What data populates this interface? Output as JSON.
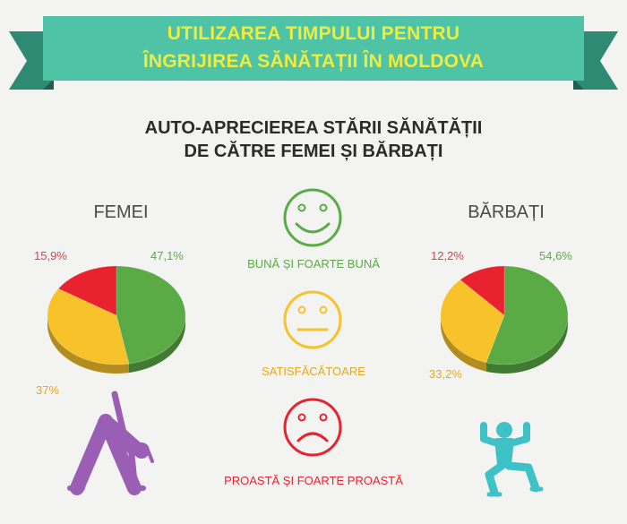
{
  "banner": {
    "line1": "UTILIZAREA TIMPULUI PENTRU",
    "line2": "ÎNGRIJIREA SĂNĂTAȚII ÎN MOLDOVA"
  },
  "subtitle": {
    "line1": "AUTO-APRECIEREA STĂRII SĂNĂTĂȚII",
    "line2": "DE CĂTRE FEMEI ȘI BĂRBAȚI"
  },
  "colors": {
    "banner": "#4fc3a6",
    "banner_dark": "#2f8a73",
    "good": "#5aab46",
    "satisfactory": "#f7c22a",
    "poor": "#e8232f",
    "women_figure": "#9a5fb5",
    "men_figure": "#3fc2c6"
  },
  "legend": {
    "good": "BUNĂ ȘI FOARTE BUNĂ",
    "satisfactory": "SATISFĂCĂTOARE",
    "poor": "PROASTĂ ȘI FOARTE PROASTĂ",
    "icons": [
      "smiley-happy-icon",
      "smiley-neutral-icon",
      "smiley-sad-icon"
    ]
  },
  "chart_data": [
    {
      "type": "pie",
      "title": "FEMEI",
      "labels": [
        "BUNĂ ȘI FOARTE BUNĂ",
        "SATISFĂCĂTOARE",
        "PROASTĂ ȘI FOARTE PROASTĂ"
      ],
      "values": [
        47.1,
        37.0,
        15.9
      ],
      "display": [
        "47,1%",
        "37%",
        "15,9%"
      ]
    },
    {
      "type": "pie",
      "title": "BĂRBAȚI",
      "labels": [
        "BUNĂ ȘI FOARTE BUNĂ",
        "SATISFĂCĂTOARE",
        "PROASTĂ ȘI FOARTE PROASTĂ"
      ],
      "values": [
        54.6,
        33.2,
        12.2
      ],
      "display": [
        "54,6%",
        "33,2%",
        "12,2%"
      ]
    }
  ]
}
